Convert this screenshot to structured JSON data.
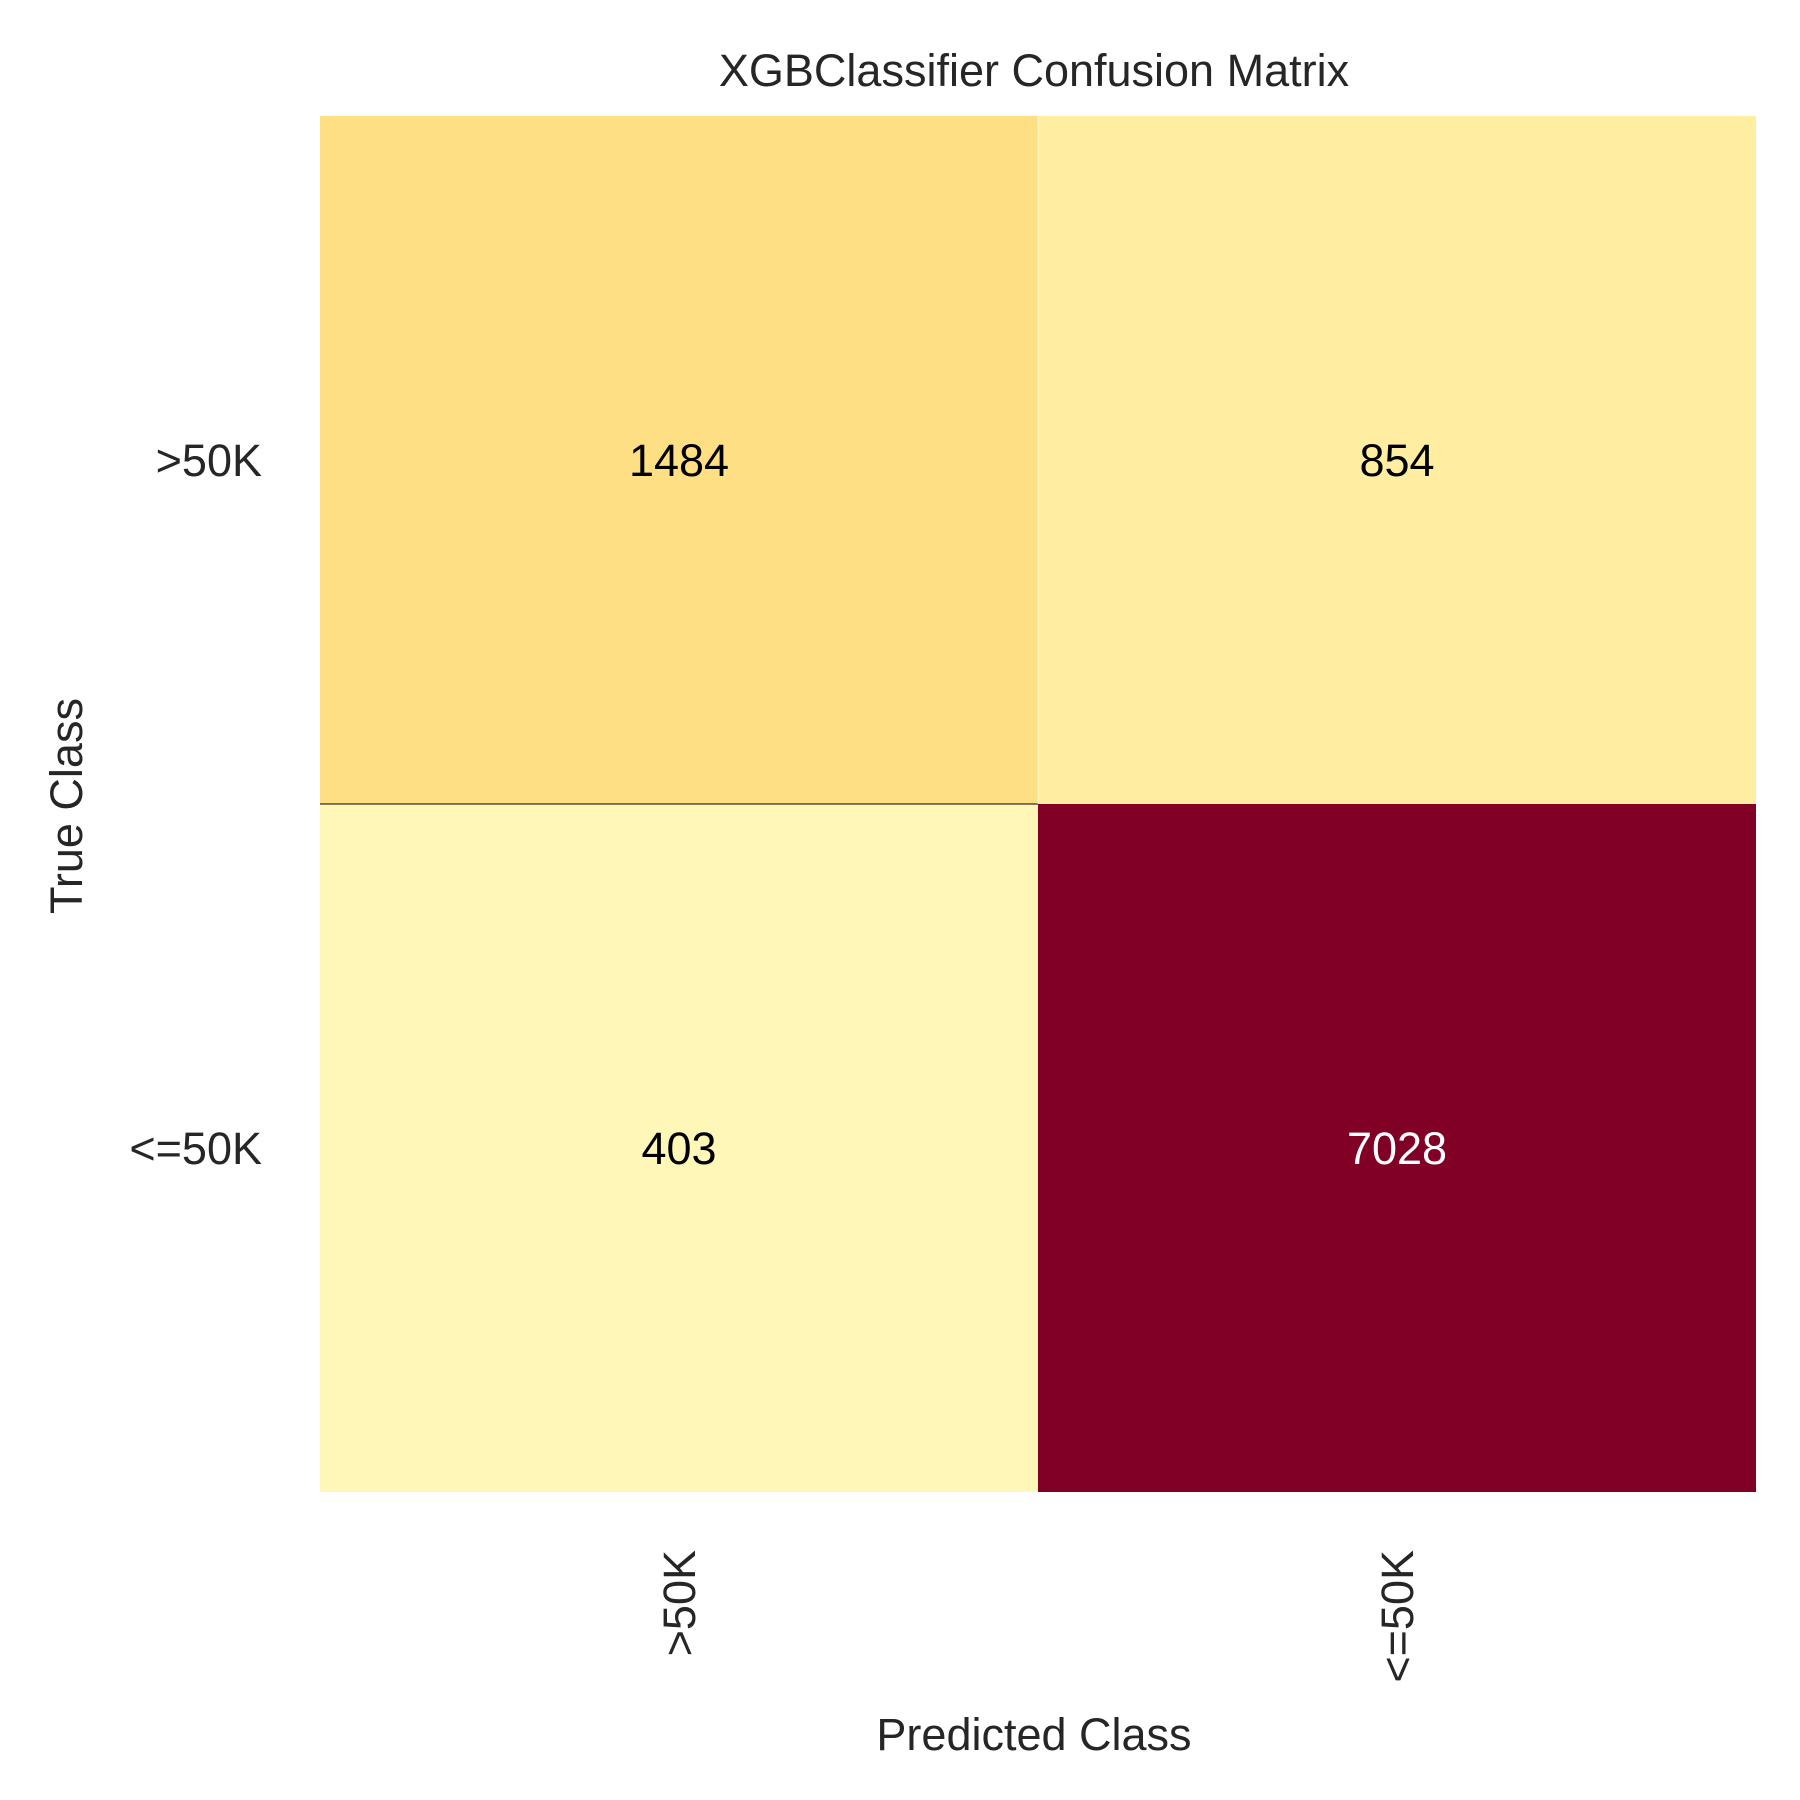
{
  "chart_data": {
    "type": "heatmap",
    "title": "XGBClassifier Confusion Matrix",
    "xlabel": "Predicted Class",
    "ylabel": "True Class",
    "x_categories": [
      ">50K",
      "<=50K"
    ],
    "y_categories": [
      ">50K",
      "<=50K"
    ],
    "values": [
      [
        1484,
        854
      ],
      [
        403,
        7028
      ]
    ],
    "colormap": "YlOrRd",
    "colors": {
      "low": "#ffffcc",
      "mid": "#ffeda0",
      "high": "#800026",
      "grid_line": "#000000",
      "text_dark": "#000000",
      "text_light": "#ffffff"
    }
  }
}
